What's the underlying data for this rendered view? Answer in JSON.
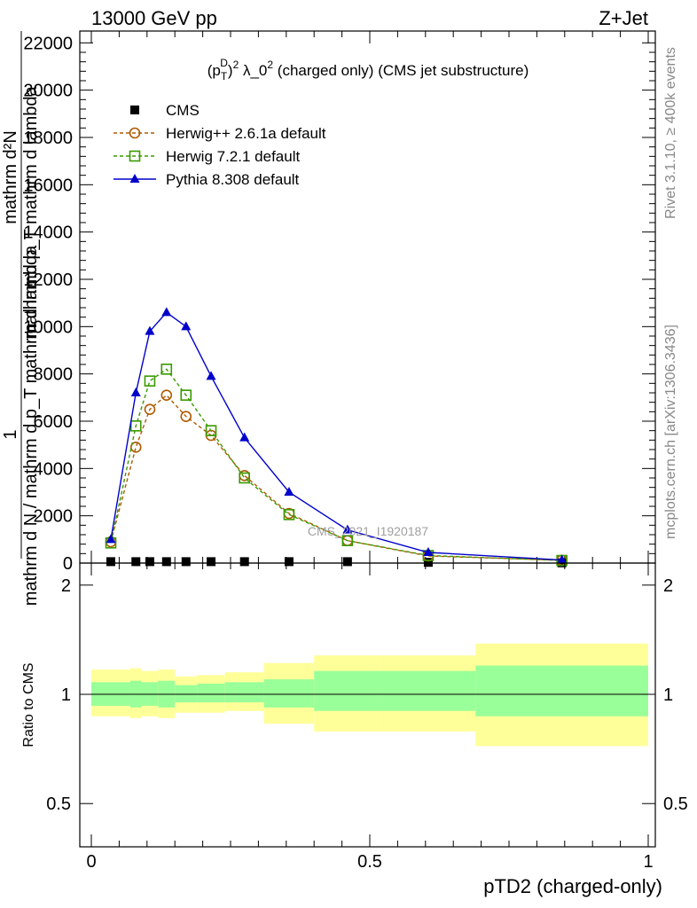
{
  "header": {
    "left_label": "13000 GeV pp",
    "right_label": "Z+Jet"
  },
  "side": {
    "rivet_label": "Rivet 3.1.10, ≥ 400k events",
    "mcplots_label": "mcplots.cern.ch [arXiv:1306.3436]"
  },
  "chart_data": [
    {
      "type": "line",
      "title": "(p_T^D)^2 λ_0^2 (charged only) (CMS jet substructure)",
      "title_parts": {
        "a": "(p",
        "sub": "T",
        "sup1": "D",
        "b": ")",
        "sup2": "2",
        "c": " λ_0",
        "sup3": "2",
        "d": " (charged only) (CMS jet substructure)"
      },
      "ylabel_top": "1",
      "ylabel_frac_top": "mathrm d²N",
      "ylabel_frac_bottom": "mathrm d p_T mathrm d lambda",
      "ylabel_lower": "mathrm d N / mathrm d p_T mathrm d lambda",
      "watermark": "CMS_2021_I1920187",
      "ylim": [
        0,
        22500
      ],
      "yticks": [
        0,
        2000,
        4000,
        6000,
        8000,
        10000,
        12000,
        14000,
        16000,
        18000,
        20000,
        22000
      ],
      "ytick_labels": [
        "0",
        "2000",
        "4000",
        "6000",
        "8000",
        "10000",
        "12000",
        "14000",
        "16000",
        "18000",
        "20000",
        "22000"
      ],
      "legend_placement": "top-left",
      "x": [
        0.035,
        0.08,
        0.105,
        0.135,
        0.17,
        0.215,
        0.275,
        0.355,
        0.46,
        0.605,
        0.845
      ],
      "series": [
        {
          "name": "CMS",
          "color": "#000000",
          "marker": "square-filled",
          "values": [
            60,
            60,
            60,
            60,
            60,
            60,
            60,
            60,
            60,
            30,
            10
          ]
        },
        {
          "name": "Herwig++ 2.6.1a default",
          "color": "#b05a00",
          "marker": "circle-open",
          "dash": true,
          "values": [
            900,
            4900,
            6500,
            7100,
            6200,
            5400,
            3700,
            2100,
            950,
            300,
            120
          ]
        },
        {
          "name": "Herwig 7.2.1 default",
          "color": "#3a9a00",
          "marker": "square-open",
          "dash": true,
          "values": [
            850,
            5800,
            7700,
            8200,
            7100,
            5600,
            3600,
            2050,
            950,
            320,
            110
          ]
        },
        {
          "name": "Pythia 8.308 default",
          "color": "#0000cc",
          "marker": "triangle-filled",
          "dash": false,
          "values": [
            1000,
            7200,
            9800,
            10600,
            10000,
            7900,
            5300,
            3000,
            1400,
            450,
            130
          ]
        }
      ]
    },
    {
      "type": "area",
      "ylabel": "Ratio to CMS",
      "xlabel": "pTD2 (charged-only)",
      "xlim": [
        0,
        1
      ],
      "xticks": [
        0,
        0.5,
        1
      ],
      "xtick_labels": [
        "0",
        "0.5",
        "1"
      ],
      "ylim": [
        0.38,
        2.3
      ],
      "yticks": [
        0.5,
        1,
        2
      ],
      "ytick_labels": [
        "0.5",
        "1",
        "2"
      ],
      "band_color_outer": "#ffff99",
      "band_color_inner": "#99ff99",
      "bins": [
        {
          "x0": 0.0,
          "x1": 0.07,
          "outer": [
            0.87,
            1.17
          ],
          "inner": [
            0.93,
            1.08
          ]
        },
        {
          "x0": 0.07,
          "x1": 0.09,
          "outer": [
            0.86,
            1.18
          ],
          "inner": [
            0.92,
            1.09
          ]
        },
        {
          "x0": 0.09,
          "x1": 0.12,
          "outer": [
            0.87,
            1.16
          ],
          "inner": [
            0.93,
            1.08
          ]
        },
        {
          "x0": 0.12,
          "x1": 0.15,
          "outer": [
            0.86,
            1.17
          ],
          "inner": [
            0.92,
            1.09
          ]
        },
        {
          "x0": 0.15,
          "x1": 0.19,
          "outer": [
            0.89,
            1.12
          ],
          "inner": [
            0.95,
            1.06
          ]
        },
        {
          "x0": 0.19,
          "x1": 0.24,
          "outer": [
            0.89,
            1.13
          ],
          "inner": [
            0.95,
            1.07
          ]
        },
        {
          "x0": 0.24,
          "x1": 0.31,
          "outer": [
            0.9,
            1.15
          ],
          "inner": [
            0.95,
            1.08
          ]
        },
        {
          "x0": 0.31,
          "x1": 0.4,
          "outer": [
            0.83,
            1.22
          ],
          "inner": [
            0.92,
            1.1
          ]
        },
        {
          "x0": 0.4,
          "x1": 0.52,
          "outer": [
            0.79,
            1.28
          ],
          "inner": [
            0.9,
            1.16
          ]
        },
        {
          "x0": 0.52,
          "x1": 0.69,
          "outer": [
            0.79,
            1.28
          ],
          "inner": [
            0.9,
            1.16
          ]
        },
        {
          "x0": 0.69,
          "x1": 1.0,
          "outer": [
            0.72,
            1.38
          ],
          "inner": [
            0.87,
            1.2
          ]
        }
      ]
    }
  ]
}
